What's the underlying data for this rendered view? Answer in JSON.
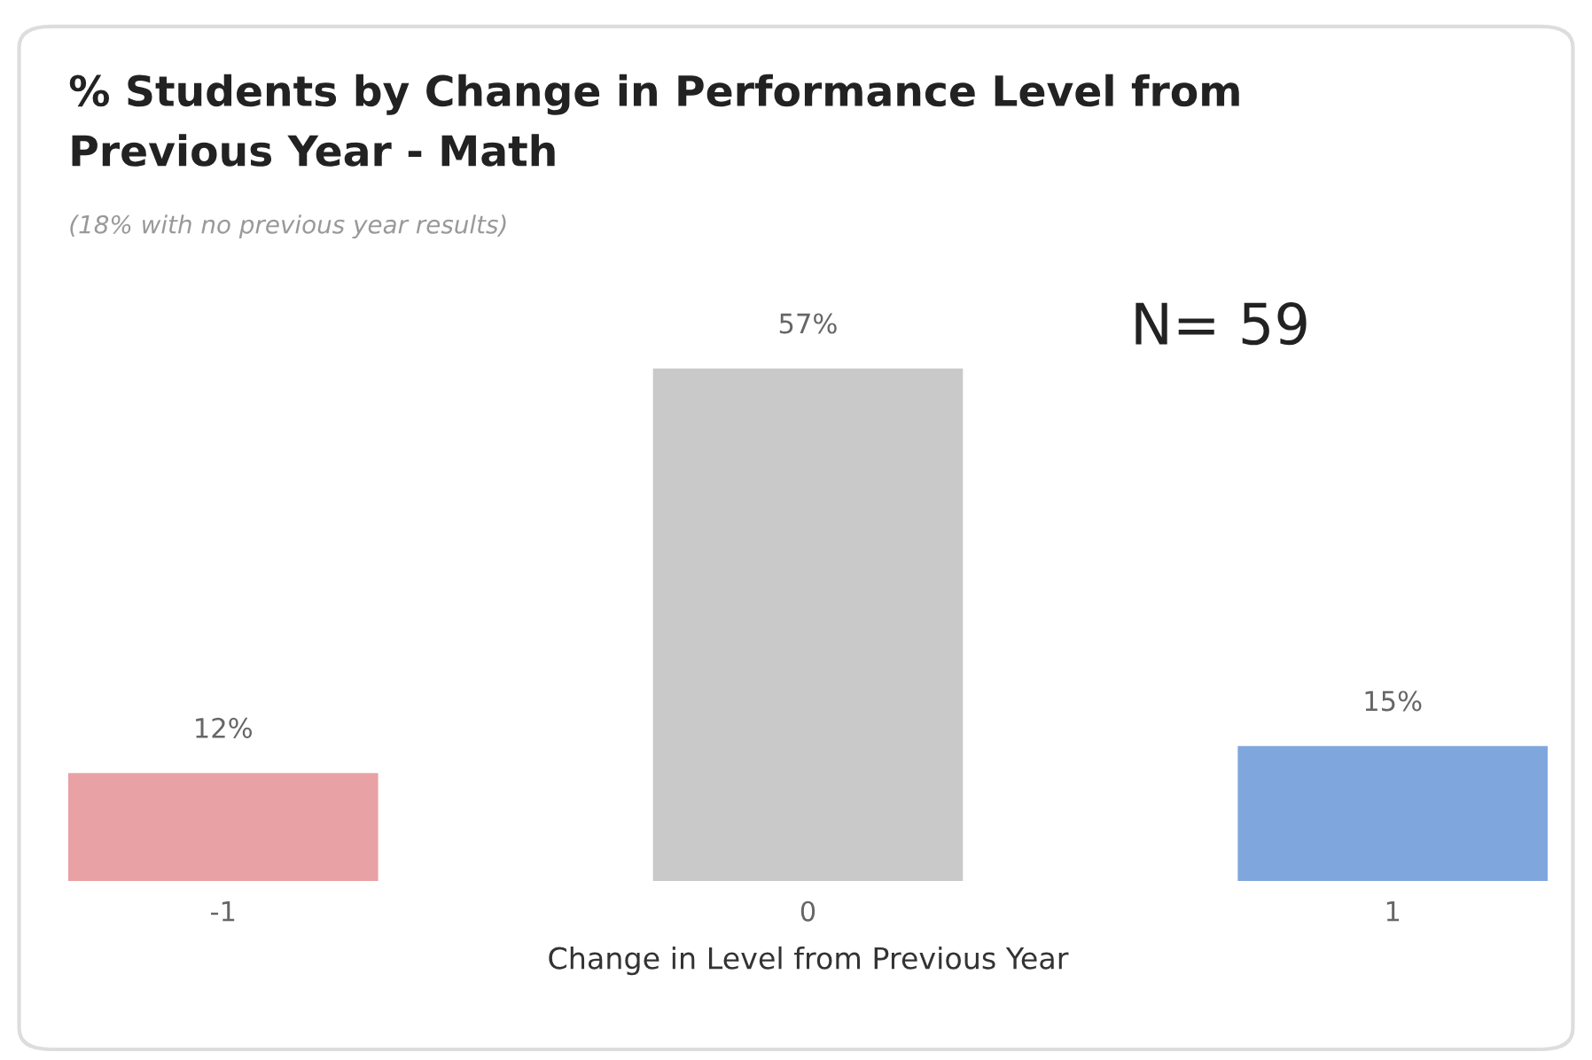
{
  "chart_data": {
    "type": "bar",
    "title": "% Students by Change in Performance Level from\nPrevious Year - Math",
    "subtitle": "(18% with no previous year results)",
    "xlabel": "Change in Level from Previous Year",
    "categories": [
      "-1",
      "0",
      "1"
    ],
    "values": [
      12,
      57,
      15
    ],
    "colors": [
      "#e8a1a5",
      "#c9c9c9",
      "#7fa7dd"
    ],
    "value_labels": [
      "12%",
      "57%",
      "15%"
    ],
    "annotations": [
      "N= 59"
    ],
    "grid": false,
    "legend": false
  }
}
